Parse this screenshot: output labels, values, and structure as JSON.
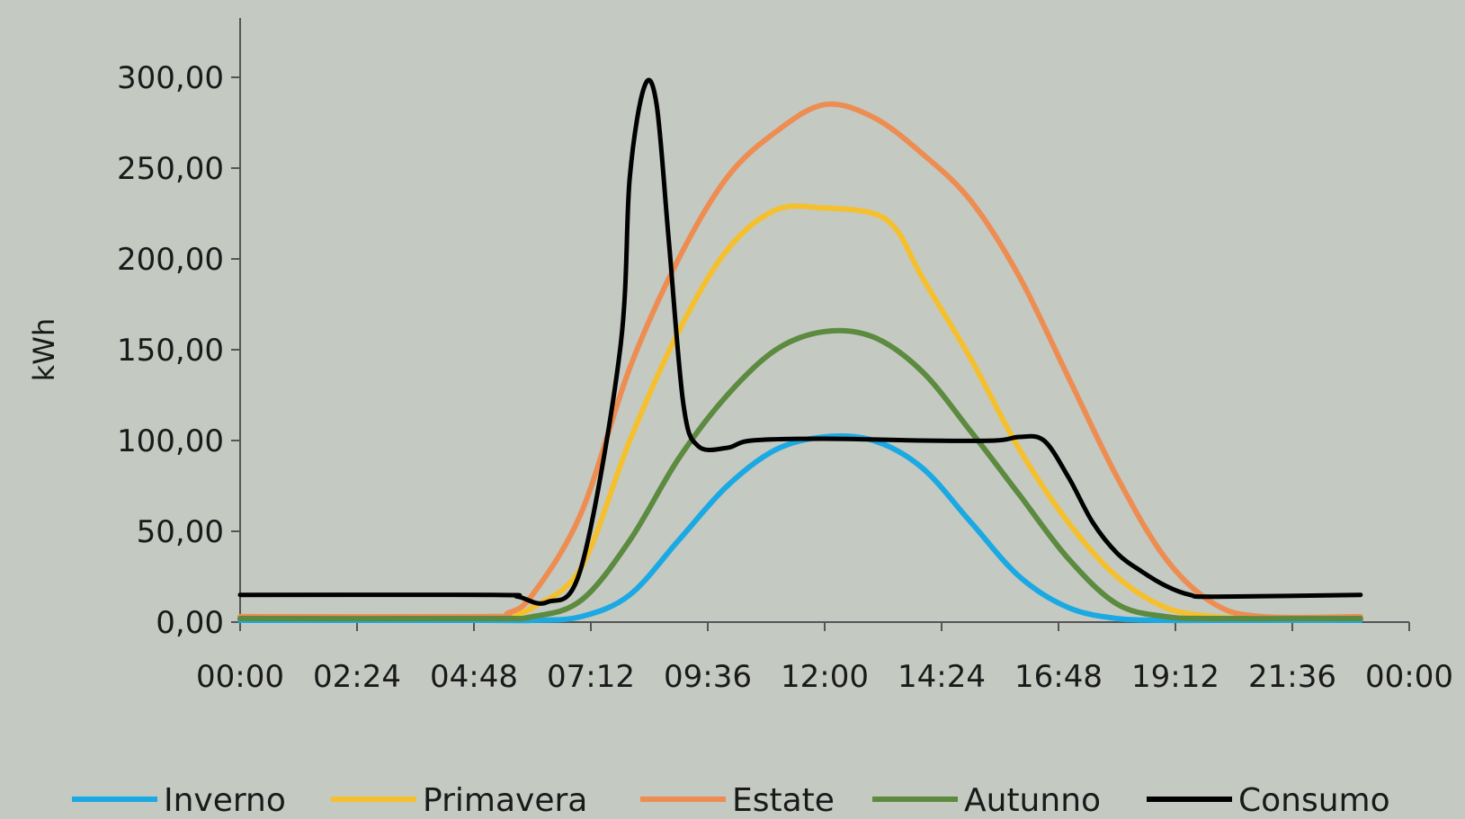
{
  "chart_data": {
    "type": "line",
    "title": "",
    "xlabel": "",
    "ylabel": "kWh",
    "x_ticks": [
      "00:00",
      "02:24",
      "04:48",
      "07:12",
      "09:36",
      "12:00",
      "14:24",
      "16:48",
      "19:12",
      "21:36",
      "00:00"
    ],
    "y_ticks": [
      "0,00",
      "50,00",
      "100,00",
      "150,00",
      "200,00",
      "250,00",
      "300,00"
    ],
    "x_range_hours": [
      0,
      24
    ],
    "ylim": [
      0,
      300
    ],
    "grid": false,
    "legend_position": "bottom",
    "series": [
      {
        "name": "Inverno",
        "color": "#1ba9e3",
        "points": [
          [
            0,
            1
          ],
          [
            5,
            1
          ],
          [
            6,
            1
          ],
          [
            7,
            3
          ],
          [
            8,
            15
          ],
          [
            9,
            45
          ],
          [
            10,
            75
          ],
          [
            11,
            95
          ],
          [
            12,
            102
          ],
          [
            13,
            100
          ],
          [
            14,
            85
          ],
          [
            15,
            55
          ],
          [
            16,
            25
          ],
          [
            17,
            8
          ],
          [
            18,
            2
          ],
          [
            19,
            1
          ],
          [
            20,
            1
          ],
          [
            23,
            1
          ]
        ]
      },
      {
        "name": "Primavera",
        "color": "#f5c02e",
        "points": [
          [
            0,
            3
          ],
          [
            5,
            3
          ],
          [
            5.5,
            4
          ],
          [
            6,
            8
          ],
          [
            7,
            30
          ],
          [
            8,
            100
          ],
          [
            9,
            160
          ],
          [
            10,
            205
          ],
          [
            11,
            227
          ],
          [
            12,
            228
          ],
          [
            13,
            225
          ],
          [
            13.5,
            215
          ],
          [
            14,
            190
          ],
          [
            15,
            145
          ],
          [
            16,
            95
          ],
          [
            17,
            55
          ],
          [
            18,
            25
          ],
          [
            19,
            8
          ],
          [
            20,
            3
          ],
          [
            21,
            2
          ],
          [
            23,
            2
          ]
        ]
      },
      {
        "name": "Estate",
        "color": "#ee8d52",
        "points": [
          [
            0,
            3
          ],
          [
            5,
            3
          ],
          [
            5.5,
            5
          ],
          [
            6,
            15
          ],
          [
            7,
            60
          ],
          [
            8,
            140
          ],
          [
            9,
            200
          ],
          [
            10,
            245
          ],
          [
            11,
            270
          ],
          [
            12,
            285
          ],
          [
            13,
            278
          ],
          [
            14,
            258
          ],
          [
            15,
            232
          ],
          [
            16,
            190
          ],
          [
            17,
            135
          ],
          [
            18,
            80
          ],
          [
            19,
            35
          ],
          [
            20,
            10
          ],
          [
            21,
            3
          ],
          [
            23,
            3
          ]
        ]
      },
      {
        "name": "Autunno",
        "color": "#5c8a3f",
        "points": [
          [
            0,
            2
          ],
          [
            5,
            2
          ],
          [
            6,
            3
          ],
          [
            7,
            12
          ],
          [
            8,
            45
          ],
          [
            9,
            90
          ],
          [
            10,
            125
          ],
          [
            11,
            150
          ],
          [
            12,
            160
          ],
          [
            13,
            157
          ],
          [
            14,
            138
          ],
          [
            15,
            105
          ],
          [
            16,
            70
          ],
          [
            17,
            35
          ],
          [
            18,
            10
          ],
          [
            19,
            3
          ],
          [
            20,
            2
          ],
          [
            23,
            2
          ]
        ]
      },
      {
        "name": "Consumo",
        "color": "#000000",
        "points": [
          [
            0,
            15
          ],
          [
            5.2,
            15
          ],
          [
            5.7,
            14
          ],
          [
            6.3,
            11
          ],
          [
            7,
            30
          ],
          [
            7.8,
            150
          ],
          [
            8,
            245
          ],
          [
            8.3,
            295
          ],
          [
            8.55,
            285
          ],
          [
            8.8,
            210
          ],
          [
            9.1,
            120
          ],
          [
            9.4,
            97
          ],
          [
            10,
            96
          ],
          [
            10.5,
            100
          ],
          [
            12,
            101
          ],
          [
            14,
            100
          ],
          [
            15.5,
            100
          ],
          [
            16,
            102
          ],
          [
            16.5,
            100
          ],
          [
            17,
            80
          ],
          [
            17.5,
            55
          ],
          [
            18,
            38
          ],
          [
            18.5,
            28
          ],
          [
            19,
            20
          ],
          [
            19.5,
            15
          ],
          [
            20,
            14
          ],
          [
            23,
            15
          ]
        ]
      }
    ]
  }
}
